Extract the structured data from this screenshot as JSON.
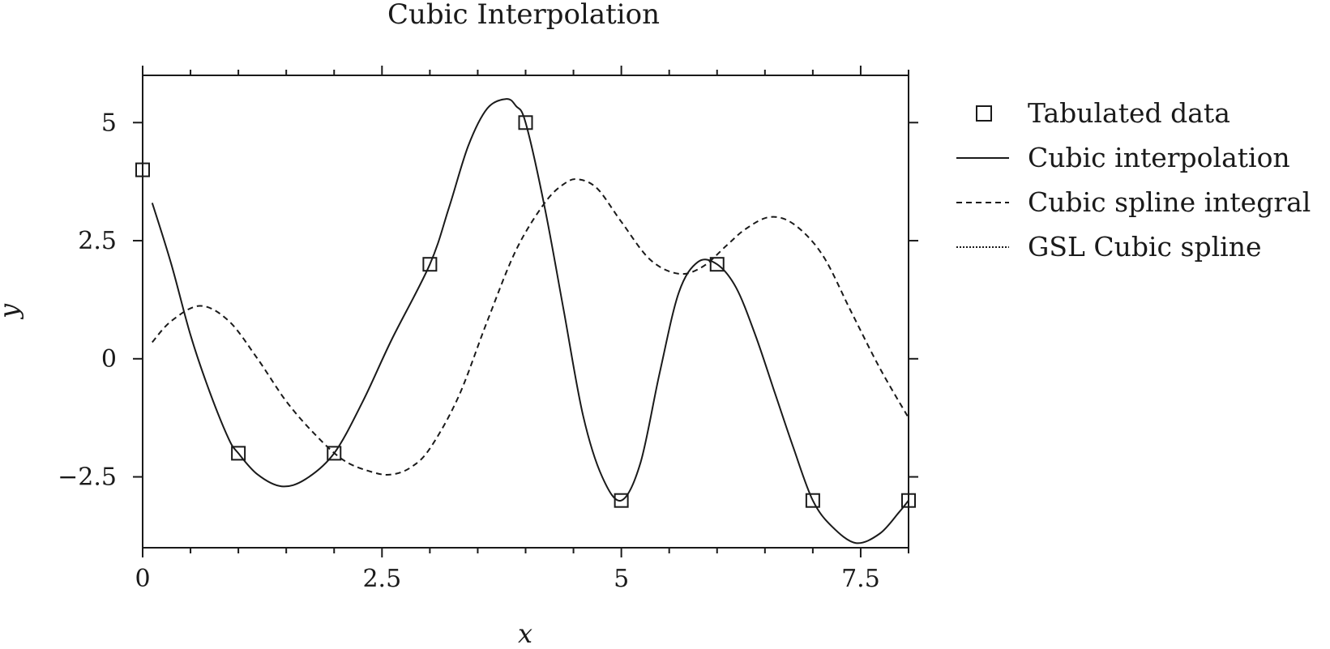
{
  "chart_data": {
    "type": "line",
    "title": "Cubic Interpolation",
    "xlabel": "x",
    "ylabel": "y",
    "xlim": [
      0,
      8
    ],
    "ylim": [
      -4,
      6
    ],
    "xticks": [
      0,
      2.5,
      5,
      7.5
    ],
    "xtick_labels": [
      "0",
      "2.5",
      "5",
      "7.5"
    ],
    "yticks": [
      -2.5,
      0,
      2.5,
      5
    ],
    "ytick_labels": [
      "−2.5",
      "0",
      "2.5",
      "5"
    ],
    "grid": false,
    "legend_placement": "outside right",
    "series": [
      {
        "name": "Tabulated data",
        "style": "markers",
        "marker": "square",
        "x": [
          0,
          1,
          2,
          3,
          4,
          5,
          6,
          7,
          8
        ],
        "y": [
          4,
          -2,
          -2,
          2,
          5,
          -3,
          2,
          -3,
          -3
        ]
      },
      {
        "name": "Cubic interpolation",
        "style": "solid",
        "x": [
          0.1,
          0.3,
          0.5,
          0.7,
          0.9,
          1.0,
          1.2,
          1.45,
          1.7,
          2.0,
          2.3,
          2.6,
          3.0,
          3.2,
          3.4,
          3.6,
          3.8,
          3.9,
          4.0,
          4.2,
          4.4,
          4.6,
          4.8,
          5.0,
          5.2,
          5.4,
          5.6,
          5.8,
          6.0,
          6.2,
          6.4,
          6.6,
          6.8,
          7.0,
          7.2,
          7.45,
          7.7,
          7.9,
          8.0
        ],
        "y": [
          3.3,
          2.0,
          0.5,
          -0.7,
          -1.7,
          -2.0,
          -2.45,
          -2.7,
          -2.55,
          -2.0,
          -0.9,
          0.4,
          2.0,
          3.2,
          4.5,
          5.3,
          5.5,
          5.35,
          5.0,
          3.2,
          1.0,
          -1.2,
          -2.5,
          -3.0,
          -2.2,
          -0.3,
          1.4,
          2.05,
          2.0,
          1.5,
          0.5,
          -0.7,
          -1.9,
          -3.0,
          -3.55,
          -3.9,
          -3.7,
          -3.25,
          -3.0
        ]
      },
      {
        "name": "Cubic spline integral",
        "style": "dashed",
        "x": [
          0.1,
          0.3,
          0.6,
          0.9,
          1.2,
          1.5,
          1.8,
          2.1,
          2.4,
          2.6,
          2.8,
          3.0,
          3.3,
          3.6,
          3.9,
          4.2,
          4.4,
          4.55,
          4.75,
          5.0,
          5.3,
          5.6,
          5.85,
          6.1,
          6.3,
          6.55,
          6.8,
          7.1,
          7.4,
          7.7,
          8.0
        ],
        "y": [
          0.35,
          0.8,
          1.12,
          0.8,
          0.0,
          -0.9,
          -1.6,
          -2.15,
          -2.4,
          -2.45,
          -2.3,
          -1.9,
          -0.8,
          0.8,
          2.3,
          3.3,
          3.7,
          3.8,
          3.6,
          2.9,
          2.1,
          1.8,
          1.95,
          2.4,
          2.75,
          3.0,
          2.85,
          2.2,
          1.0,
          -0.2,
          -1.25
        ]
      },
      {
        "name": "GSL Cubic spline",
        "style": "dotted",
        "x": [],
        "y": []
      }
    ]
  }
}
